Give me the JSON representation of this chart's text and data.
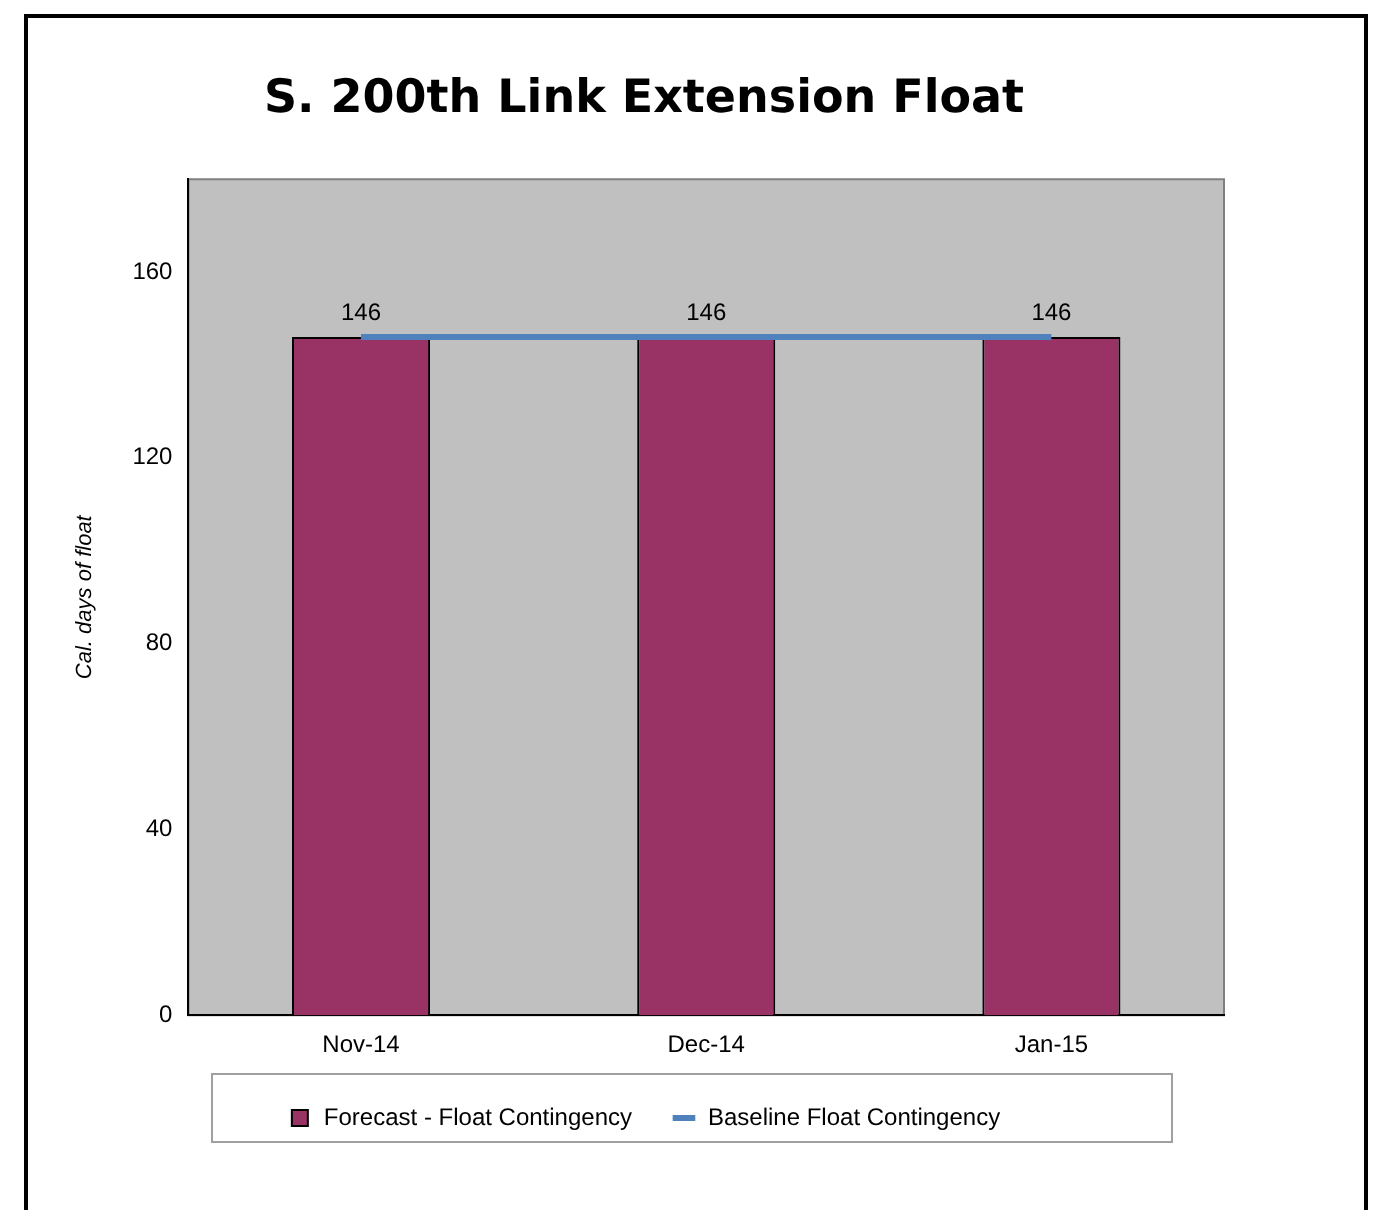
{
  "chart_data": {
    "type": "bar",
    "title": "S. 200th Link Extension Float",
    "ylabel": "Cal. days of float",
    "categories": [
      "Nov-14",
      "Dec-14",
      "Jan-15"
    ],
    "series": [
      {
        "name": "Forecast - Float Contingency",
        "color": "#993366",
        "values": [
          146,
          146,
          146
        ],
        "value_labels": [
          "146",
          "146",
          "146"
        ]
      },
      {
        "name": "Baseline Float Contingency",
        "type": "line",
        "color": "#4f81bd",
        "values": [
          146,
          146,
          146
        ]
      }
    ],
    "ylim": [
      0,
      180
    ],
    "yticks": [
      0,
      40,
      80,
      120,
      160
    ],
    "grid": false,
    "legend": "bottom",
    "marker": "none",
    "line_style": "solid"
  }
}
